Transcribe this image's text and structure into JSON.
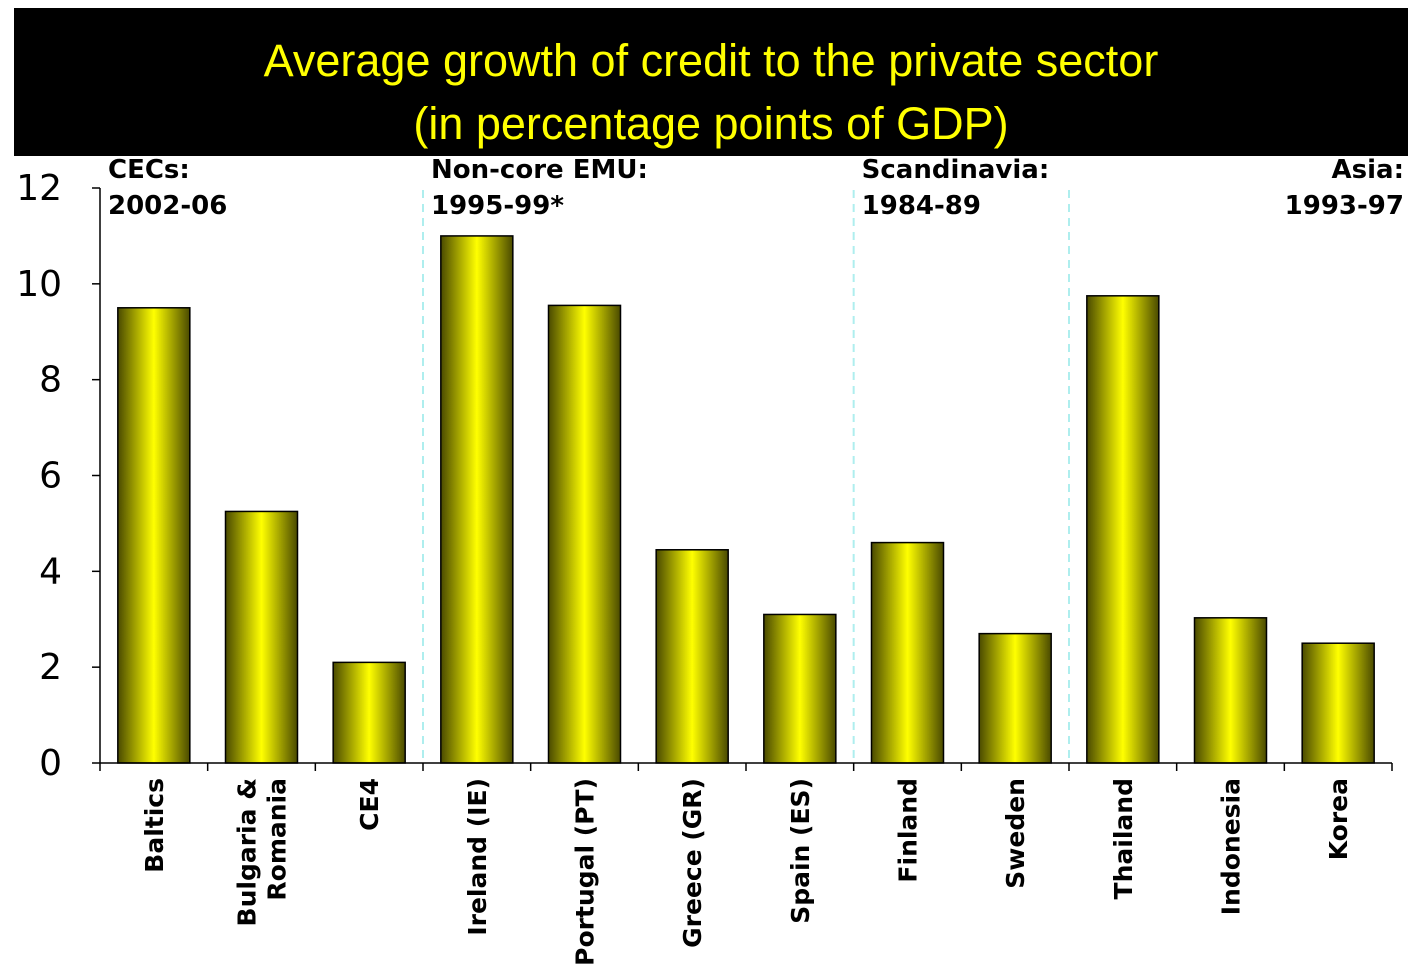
{
  "chart_data": {
    "type": "bar",
    "title": "Average growth of credit to the private sector",
    "subtitle": "(in percentage points  of GDP)",
    "categories": [
      [
        "Baltics"
      ],
      [
        "Bulgaria &",
        "Romania"
      ],
      [
        "CE4"
      ],
      [
        "Ireland (IE)"
      ],
      [
        "Portugal (PT)"
      ],
      [
        "Greece (GR)"
      ],
      [
        "Spain (ES)"
      ],
      [
        "Finland"
      ],
      [
        "Sweden"
      ],
      [
        "Thailand"
      ],
      [
        "Indonesia"
      ],
      [
        "Korea"
      ]
    ],
    "values": [
      9.5,
      5.25,
      2.1,
      11.0,
      9.55,
      4.45,
      3.1,
      4.6,
      2.7,
      9.75,
      3.03,
      2.5
    ],
    "ylim": [
      0,
      12
    ],
    "yticks": [
      "0",
      "2",
      "4",
      "6",
      "8",
      "10",
      "12"
    ],
    "groups": [
      {
        "lines": [
          "CECs:",
          "2002-06"
        ],
        "start": 0,
        "end": 2,
        "align": "left"
      },
      {
        "lines": [
          "Non-core EMU:",
          "1995-99*"
        ],
        "start": 3,
        "end": 6,
        "align": "left"
      },
      {
        "lines": [
          "Scandinavia:",
          "1984-89"
        ],
        "start": 7,
        "end": 8,
        "align": "left"
      },
      {
        "lines": [
          "Asia:",
          "1993-97"
        ],
        "start": 9,
        "end": 11,
        "align": "right"
      }
    ],
    "bar_color_light": "#ffff00",
    "bar_color_dark": "#4a4a00",
    "separator_color": "#aeeeee",
    "grid": false,
    "legend": "none"
  }
}
